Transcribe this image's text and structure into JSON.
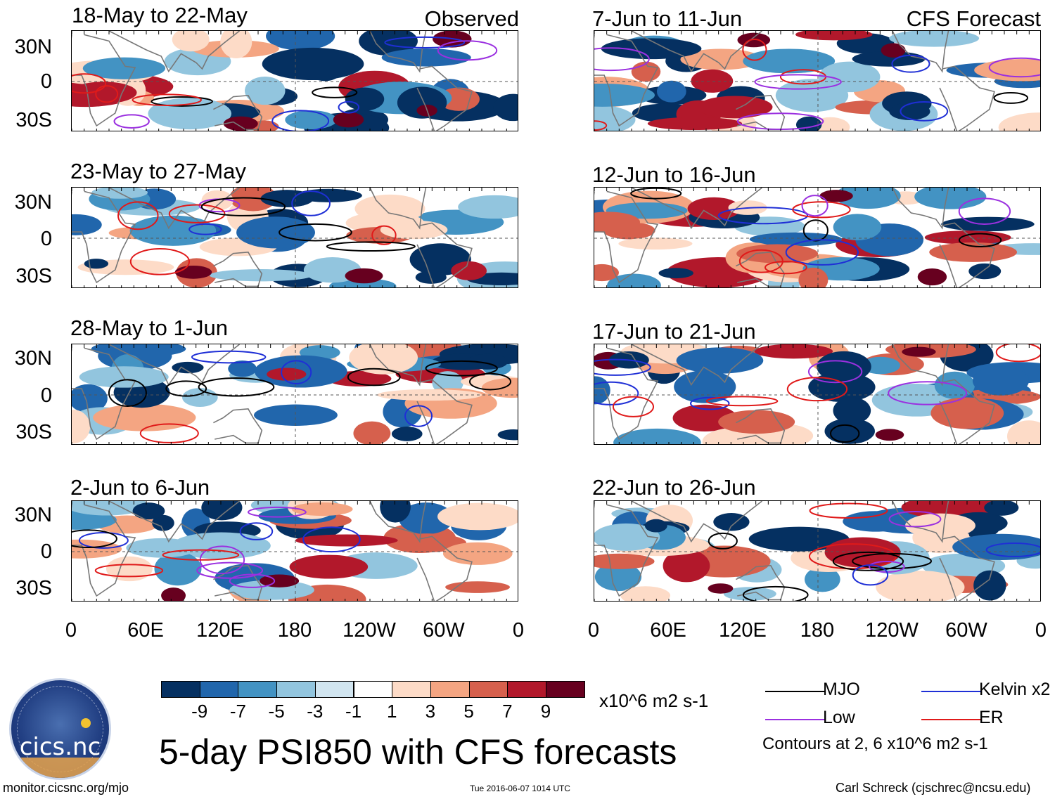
{
  "chart_data": {
    "type": "heatmap",
    "title": "5-day PSI850 with CFS forecasts",
    "variable": "PSI850 anomaly",
    "units": "x10^6 m2 s-1",
    "sections": {
      "observed": "Observed",
      "forecast": "CFS Forecast"
    },
    "y_ticks": [
      "30N",
      "0",
      "30S"
    ],
    "x_ticks": [
      "0",
      "60E",
      "120E",
      "180",
      "120W",
      "60W",
      "0"
    ],
    "x_range_deg": [
      0,
      360
    ],
    "y_range_deg": [
      -40,
      40
    ],
    "panels": [
      {
        "period": "18-May to 22-May",
        "type": "observed"
      },
      {
        "period": "23-May to 27-May",
        "type": "observed"
      },
      {
        "period": "28-May to 1-Jun",
        "type": "observed"
      },
      {
        "period": "2-Jun to 6-Jun",
        "type": "observed"
      },
      {
        "period": "7-Jun to 11-Jun",
        "type": "forecast"
      },
      {
        "period": "12-Jun to 16-Jun",
        "type": "forecast"
      },
      {
        "period": "17-Jun to 21-Jun",
        "type": "forecast"
      },
      {
        "period": "22-Jun to 26-Jun",
        "type": "forecast"
      }
    ],
    "colorbar": {
      "colors": [
        "#053061",
        "#2166ac",
        "#4393c3",
        "#92c5de",
        "#d1e5f0",
        "#ffffff",
        "#fddbc7",
        "#f4a582",
        "#d6604d",
        "#b2182b",
        "#67001f"
      ],
      "tick_labels": [
        "-9",
        "-7",
        "-5",
        "-3",
        "-1",
        "1",
        "3",
        "5",
        "7",
        "9"
      ],
      "units_label": "x10^6 m2 s-1"
    },
    "legend": [
      {
        "label": "MJO",
        "color": "#000000"
      },
      {
        "label": "Kelvin x2",
        "color": "#1f2fd6"
      },
      {
        "label": "Low",
        "color": "#9b30e0"
      },
      {
        "label": "ER",
        "color": "#e01a1a"
      }
    ],
    "contour_note": "Contours at 2, 6 x10^6 m2 s-1"
  },
  "footer": {
    "url": "monitor.cicsnc.org/mjo",
    "timestamp": "Tue 2016-06-07 1014 UTC",
    "author": "Carl Schreck (cjschrec@ncsu.edu)"
  },
  "logo": {
    "name": "cics.nc"
  }
}
